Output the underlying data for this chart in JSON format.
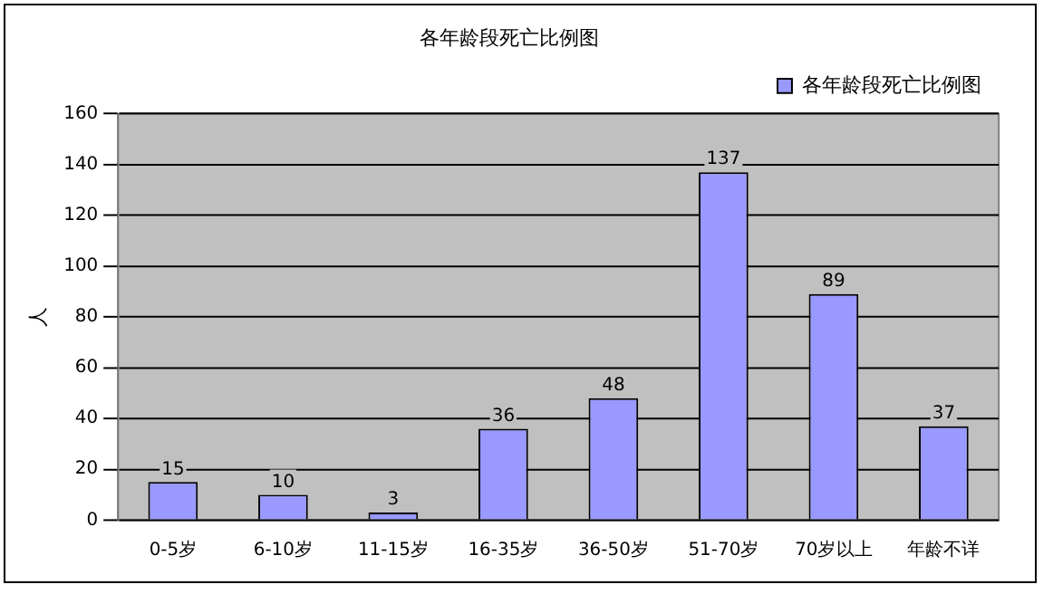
{
  "chart_data": {
    "type": "bar",
    "title": "各年龄段死亡比例图",
    "ylabel": "人",
    "categories": [
      "0-5岁",
      "6-10岁",
      "11-15岁",
      "16-35岁",
      "36-50岁",
      "51-70岁",
      "70岁以上",
      "年龄不详"
    ],
    "series": [
      {
        "name": "各年龄段死亡比例图",
        "color": "#9999ff",
        "values": [
          15,
          10,
          3,
          36,
          48,
          137,
          89,
          37
        ]
      }
    ],
    "ylim": [
      0,
      160
    ],
    "yticks": [
      0,
      20,
      40,
      60,
      80,
      100,
      120,
      140,
      160
    ],
    "grid": "y",
    "legend": "top right",
    "data_labels": true
  }
}
